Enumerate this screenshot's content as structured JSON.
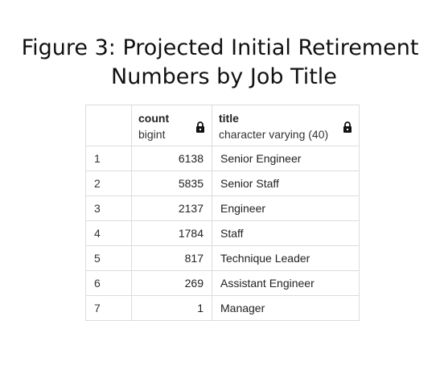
{
  "figure": {
    "title_line1": "Figure 3: Projected Initial Retirement",
    "title_line2": "Numbers by Job Title"
  },
  "table": {
    "columns": [
      {
        "name": "count",
        "type": "bigint",
        "icon": "lock-icon"
      },
      {
        "name": "title",
        "type": "character varying (40)",
        "icon": "lock-icon"
      }
    ],
    "rows": [
      {
        "row": "1",
        "count": "6138",
        "title": "Senior Engineer"
      },
      {
        "row": "2",
        "count": "5835",
        "title": "Senior Staff"
      },
      {
        "row": "3",
        "count": "2137",
        "title": "Engineer"
      },
      {
        "row": "4",
        "count": "1784",
        "title": "Staff"
      },
      {
        "row": "5",
        "count": "817",
        "title": "Technique Leader"
      },
      {
        "row": "6",
        "count": "269",
        "title": "Assistant Engineer"
      },
      {
        "row": "7",
        "count": "1",
        "title": "Manager"
      }
    ]
  }
}
